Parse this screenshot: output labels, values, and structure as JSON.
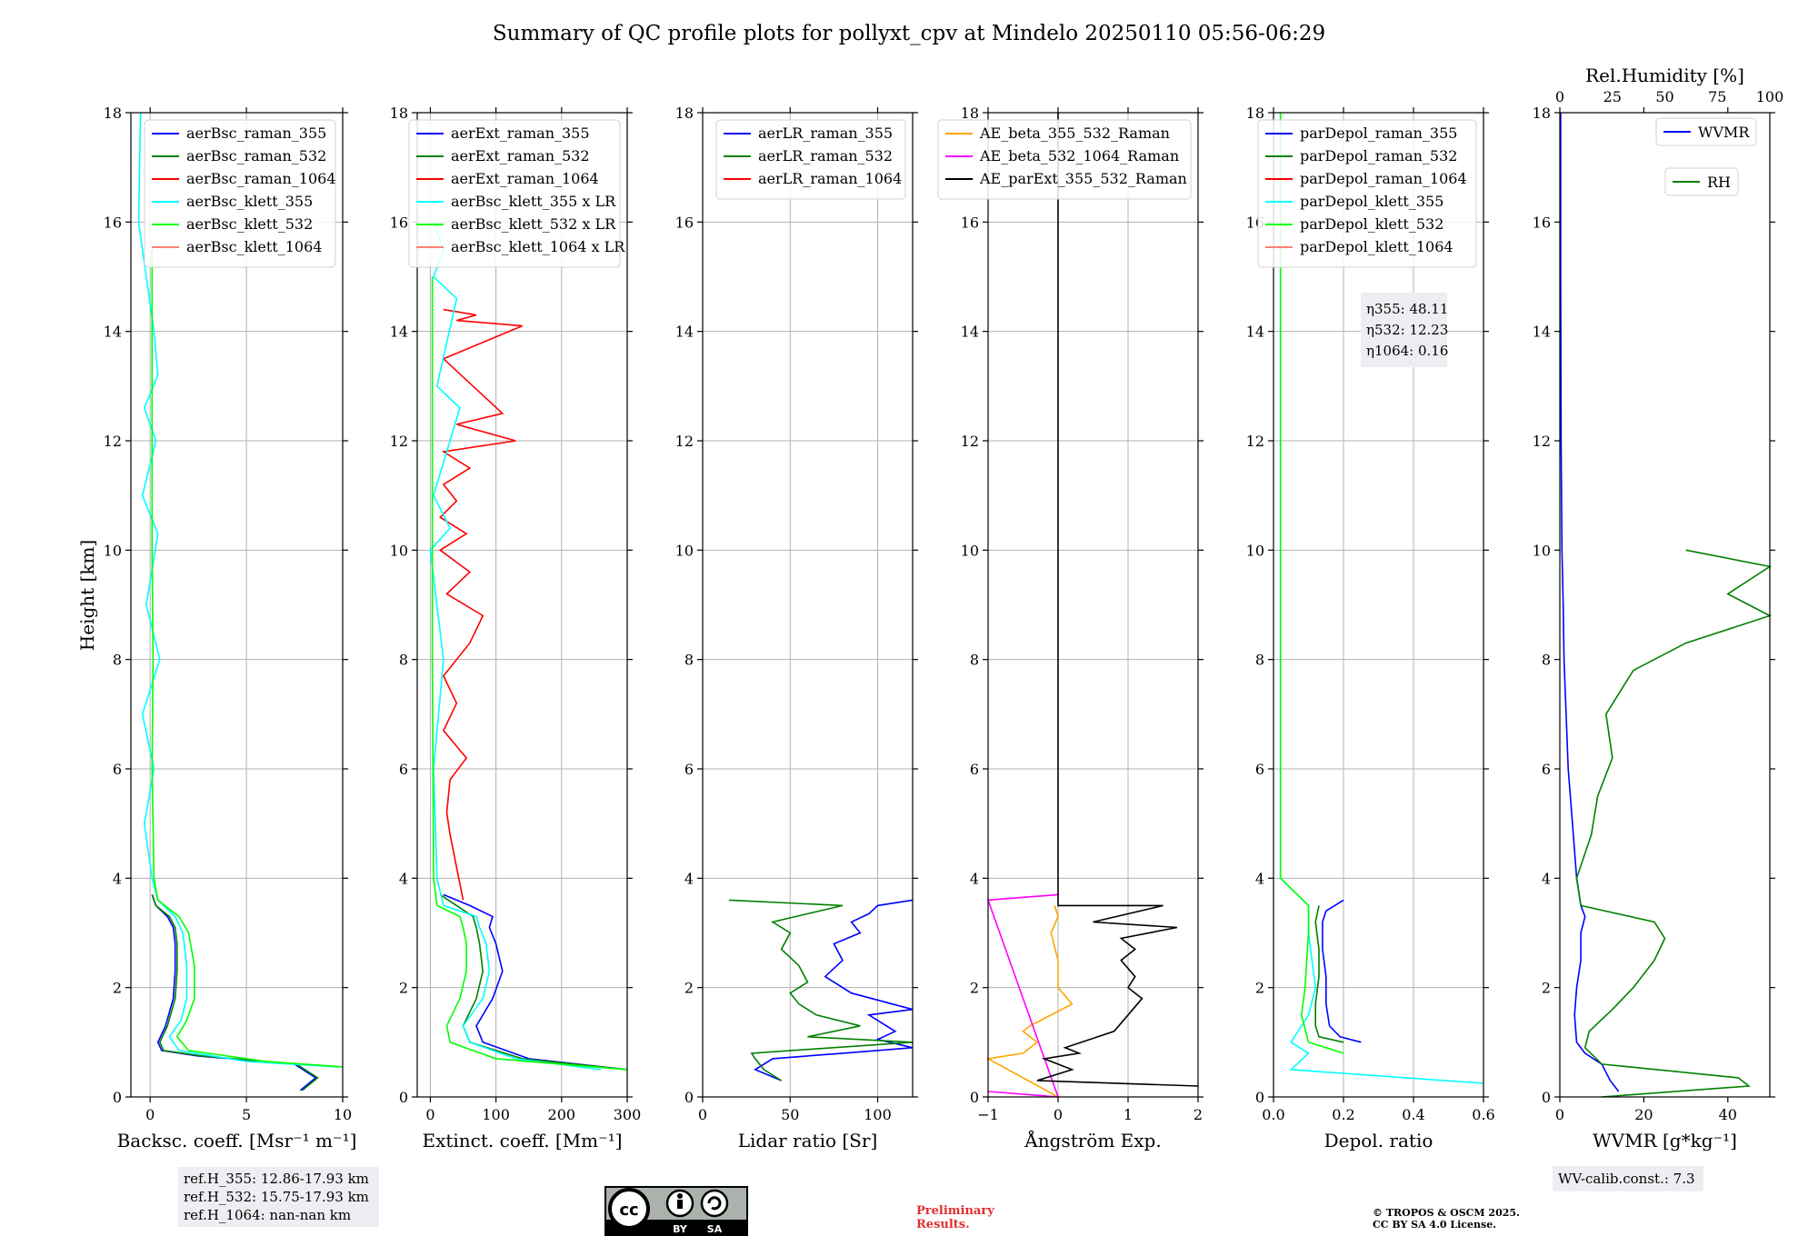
{
  "title": "Summary of QC profile plots for pollyxt_cpv at Mindelo 20250110 05:56-06:29",
  "ylabel": "Height [km]",
  "chart_data": [
    {
      "type": "line",
      "xlabel": "Backsc. coeff. [Msr⁻¹ m⁻¹]",
      "xlim": [
        -1,
        10
      ],
      "ylim": [
        0,
        18
      ],
      "xticks": [
        "0",
        "5",
        "10"
      ],
      "yticks": [
        "0",
        "2",
        "4",
        "6",
        "8",
        "10",
        "12",
        "14",
        "16",
        "18"
      ],
      "grid": true,
      "legend_position": "top-right",
      "series": [
        {
          "name": "aerBsc_raman_355",
          "color": "#0000ff",
          "x": [
            7.8,
            8.6,
            7.5,
            2.5,
            0.6,
            0.4,
            0.8,
            1.2,
            1.3,
            1.3,
            1.2,
            0.9,
            0.3,
            0.1
          ],
          "y": [
            0.12,
            0.35,
            0.6,
            0.75,
            0.85,
            1.0,
            1.3,
            1.8,
            2.3,
            2.8,
            3.1,
            3.3,
            3.5,
            3.7
          ]
        },
        {
          "name": "aerBsc_raman_532",
          "color": "#008000",
          "x": [
            7.9,
            8.7,
            7.6,
            2.7,
            0.7,
            0.5,
            0.9,
            1.3,
            1.4,
            1.4,
            1.3,
            1.0,
            0.3,
            0.1
          ],
          "y": [
            0.12,
            0.35,
            0.6,
            0.75,
            0.85,
            1.0,
            1.3,
            1.8,
            2.3,
            2.8,
            3.1,
            3.3,
            3.5,
            3.7
          ]
        },
        {
          "name": "aerBsc_raman_1064",
          "color": "#ff0000",
          "x": [],
          "y": []
        },
        {
          "name": "aerBsc_klett_355",
          "color": "#00ffff",
          "x": [
            9.8,
            5.0,
            1.5,
            1.0,
            1.6,
            1.9,
            1.9,
            1.7,
            1.3,
            0.4,
            0.1,
            -0.3,
            0.2,
            -0.4,
            0.5,
            -0.2,
            0.4,
            -0.4,
            0.3,
            -0.3,
            0.4,
            0.2,
            -0.2,
            -0.6,
            -0.5
          ],
          "y": [
            0.55,
            0.65,
            0.85,
            1.1,
            1.4,
            1.8,
            2.4,
            3.0,
            3.3,
            3.6,
            4.0,
            5.0,
            6.0,
            7.0,
            8.0,
            9.0,
            10.3,
            11.0,
            12.0,
            12.6,
            13.2,
            14.0,
            15.0,
            16.0,
            18.0
          ]
        },
        {
          "name": "aerBsc_klett_532",
          "color": "#00ff00",
          "x": [
            10.0,
            6.0,
            2.0,
            1.4,
            1.9,
            2.3,
            2.3,
            2.0,
            1.5,
            0.4,
            0.2,
            0.1,
            0.15,
            0.1,
            0.1
          ],
          "y": [
            0.55,
            0.65,
            0.85,
            1.1,
            1.4,
            1.8,
            2.4,
            3.0,
            3.3,
            3.6,
            4.0,
            6.0,
            8.0,
            10.0,
            15.5
          ]
        },
        {
          "name": "aerBsc_klett_1064",
          "color": "#fa8072",
          "x": [],
          "y": []
        }
      ]
    },
    {
      "type": "line",
      "xlabel": "Extinct. coeff. [Mm⁻¹]",
      "xlim": [
        -20,
        300
      ],
      "ylim": [
        0,
        18
      ],
      "xticks": [
        "0",
        "100",
        "200",
        "300"
      ],
      "yticks": [
        "0",
        "2",
        "4",
        "6",
        "8",
        "10",
        "12",
        "14",
        "16",
        "18"
      ],
      "grid": true,
      "legend_position": "top-right",
      "series": [
        {
          "name": "aerExt_raman_355",
          "color": "#0000ff",
          "x": [
            300,
            150,
            80,
            70,
            95,
            110,
            100,
            90,
            95,
            60,
            20
          ],
          "y": [
            0.5,
            0.7,
            1.0,
            1.3,
            1.8,
            2.3,
            2.8,
            3.1,
            3.3,
            3.5,
            3.7
          ]
        },
        {
          "name": "aerExt_raman_532",
          "color": "#008000",
          "x": [
            300,
            140,
            60,
            50,
            70,
            80,
            75,
            70,
            65,
            40,
            15
          ],
          "y": [
            0.5,
            0.7,
            1.0,
            1.3,
            1.8,
            2.3,
            2.8,
            3.1,
            3.3,
            3.5,
            3.7
          ]
        },
        {
          "name": "aerExt_raman_1064",
          "color": "#ff0000",
          "x": [
            50,
            40,
            30,
            25,
            30,
            55,
            20,
            40,
            20,
            60,
            80,
            25,
            60,
            15,
            55,
            15,
            40,
            20,
            60,
            20,
            130,
            40,
            110,
            20,
            140,
            40,
            70,
            20
          ],
          "y": [
            3.6,
            4.2,
            4.8,
            5.2,
            5.8,
            6.2,
            6.7,
            7.2,
            7.7,
            8.3,
            8.8,
            9.2,
            9.6,
            10.0,
            10.3,
            10.6,
            10.9,
            11.2,
            11.5,
            11.8,
            12.0,
            12.3,
            12.5,
            13.5,
            14.1,
            14.2,
            14.3,
            14.4
          ]
        },
        {
          "name": "aerBsc_klett_355 x LR",
          "color": "#00ffff",
          "x": [
            260,
            130,
            60,
            50,
            80,
            90,
            85,
            75,
            70,
            20,
            10,
            5,
            20,
            0,
            30,
            5,
            45,
            10,
            40,
            5,
            20,
            5
          ],
          "y": [
            0.5,
            0.7,
            1.0,
            1.3,
            1.8,
            2.3,
            2.8,
            3.1,
            3.3,
            3.5,
            4.0,
            6.0,
            8.0,
            10.0,
            10.4,
            11.0,
            12.6,
            13.0,
            14.6,
            15.0,
            15.5,
            16.0
          ]
        },
        {
          "name": "aerBsc_klett_532 x LR",
          "color": "#00ff00",
          "x": [
            300,
            100,
            30,
            25,
            45,
            55,
            55,
            50,
            45,
            10,
            5,
            3,
            3
          ],
          "y": [
            0.5,
            0.7,
            1.0,
            1.3,
            1.8,
            2.3,
            2.8,
            3.1,
            3.3,
            3.5,
            4.0,
            8.0,
            15.0
          ]
        },
        {
          "name": "aerBsc_klett_1064 x LR",
          "color": "#fa8072",
          "x": [],
          "y": []
        }
      ]
    },
    {
      "type": "line",
      "xlabel": "Lidar ratio [Sr]",
      "xlim": [
        0,
        120
      ],
      "ylim": [
        0,
        18
      ],
      "xticks": [
        "0",
        "50",
        "100"
      ],
      "yticks": [
        "0",
        "2",
        "4",
        "6",
        "8",
        "10",
        "12",
        "14",
        "16",
        "18"
      ],
      "grid": true,
      "legend_position": "top-right",
      "series": [
        {
          "name": "aerLR_raman_355",
          "color": "#0000ff",
          "x": [
            45,
            30,
            40,
            80,
            120,
            100,
            110,
            95,
            120,
            85,
            70,
            80,
            75,
            90,
            85,
            95,
            100,
            120
          ],
          "y": [
            0.3,
            0.5,
            0.7,
            0.8,
            0.9,
            1.05,
            1.2,
            1.5,
            1.6,
            1.9,
            2.2,
            2.5,
            2.8,
            3.0,
            3.2,
            3.35,
            3.5,
            3.6
          ]
        },
        {
          "name": "aerLR_raman_532",
          "color": "#008000",
          "x": [
            45,
            35,
            30,
            28,
            120,
            60,
            90,
            65,
            55,
            50,
            60,
            55,
            45,
            50,
            40,
            60,
            80,
            15
          ],
          "y": [
            0.3,
            0.5,
            0.7,
            0.8,
            1.0,
            1.1,
            1.3,
            1.5,
            1.7,
            1.9,
            2.1,
            2.4,
            2.7,
            3.0,
            3.2,
            3.35,
            3.5,
            3.6
          ]
        },
        {
          "name": "aerLR_raman_1064",
          "color": "#ff0000",
          "x": [],
          "y": []
        }
      ]
    },
    {
      "type": "line",
      "xlabel": "Ångström Exp.",
      "xlim": [
        -1,
        2
      ],
      "ylim": [
        0,
        18
      ],
      "xticks": [
        "−1",
        "0",
        "1",
        "2"
      ],
      "yticks": [
        "0",
        "2",
        "4",
        "6",
        "8",
        "10",
        "12",
        "14",
        "16",
        "18"
      ],
      "grid": true,
      "legend_position": "top-right",
      "series": [
        {
          "name": "AE_beta_355_532_Raman",
          "color": "#ffa500",
          "x": [
            0,
            -1,
            -0.5,
            -0.3,
            -0.5,
            -0.4,
            0.2,
            0,
            0,
            -0.1,
            0,
            -0.05
          ],
          "y": [
            0,
            0.7,
            0.8,
            1.0,
            1.2,
            1.3,
            1.7,
            2.0,
            2.5,
            3.0,
            3.3,
            3.5
          ]
        },
        {
          "name": "AE_beta_532_1064_Raman",
          "color": "#ff00ff",
          "x": [
            -1,
            0,
            -1,
            0
          ],
          "y": [
            0.1,
            0.0,
            3.6,
            3.7
          ]
        },
        {
          "name": "AE_parExt_355_532_Raman",
          "color": "#000000",
          "x": [
            2,
            -0.3,
            0.2,
            -0.2,
            0.3,
            0.1,
            0.8,
            1.0,
            1.2,
            1.0,
            1.1,
            0.9,
            1.1,
            0.9,
            1.7,
            0.5,
            1.5,
            0,
            0,
            0
          ],
          "y": [
            0.2,
            0.3,
            0.5,
            0.7,
            0.8,
            0.9,
            1.2,
            1.5,
            1.8,
            2.0,
            2.2,
            2.5,
            2.7,
            2.9,
            3.1,
            3.2,
            3.5,
            3.5,
            10.0,
            18.0
          ]
        }
      ]
    },
    {
      "type": "line",
      "xlabel": "Depol. ratio",
      "xlim": [
        0,
        0.6
      ],
      "ylim": [
        0,
        18
      ],
      "xticks": [
        "0.0",
        "0.2",
        "0.4",
        "0.6"
      ],
      "yticks": [
        "0",
        "2",
        "4",
        "6",
        "8",
        "10",
        "12",
        "14",
        "16",
        "18"
      ],
      "grid": true,
      "legend_position": "top-right",
      "series": [
        {
          "name": "parDepol_raman_355",
          "color": "#0000ff",
          "x": [
            0.25,
            0.19,
            0.16,
            0.15,
            0.15,
            0.14,
            0.14,
            0.15,
            0.2
          ],
          "y": [
            1.0,
            1.1,
            1.3,
            1.7,
            2.2,
            2.7,
            3.2,
            3.4,
            3.6
          ]
        },
        {
          "name": "parDepol_raman_532",
          "color": "#008000",
          "x": [
            0.2,
            0.13,
            0.12,
            0.12,
            0.13,
            0.13,
            0.12,
            0.13
          ],
          "y": [
            1.0,
            1.1,
            1.3,
            1.7,
            2.2,
            2.7,
            3.2,
            3.5
          ]
        },
        {
          "name": "parDepol_raman_1064",
          "color": "#ff0000",
          "x": [],
          "y": []
        },
        {
          "name": "parDepol_klett_355",
          "color": "#00ffff",
          "x": [
            0.6,
            0.05,
            0.1,
            0.05,
            0.1,
            0.12,
            0.1,
            0.1,
            0.02,
            0.02
          ],
          "y": [
            0.25,
            0.5,
            0.8,
            1.0,
            1.5,
            2.0,
            3.0,
            3.5,
            4.0,
            18.0
          ]
        },
        {
          "name": "parDepol_klett_532",
          "color": "#00ff00",
          "x": [
            0.2,
            0.1,
            0.08,
            0.09,
            0.1,
            0.1,
            0.02,
            0.02
          ],
          "y": [
            0.8,
            1.0,
            1.5,
            2.0,
            3.0,
            3.5,
            4.0,
            18.0
          ]
        },
        {
          "name": "parDepol_klett_1064",
          "color": "#fa8072",
          "x": [],
          "y": []
        }
      ]
    },
    {
      "type": "line",
      "xlabel": "WVMR [g*kg⁻¹]",
      "xlim": [
        0,
        50
      ],
      "ylim": [
        0,
        18
      ],
      "xticks": [
        "0",
        "20",
        "40"
      ],
      "yticks": [
        "0",
        "2",
        "4",
        "6",
        "8",
        "10",
        "12",
        "14",
        "16",
        "18"
      ],
      "x2label": "Rel.Humidity [%]",
      "x2lim": [
        0,
        100
      ],
      "x2ticks": [
        "0",
        "25",
        "50",
        "75",
        "100"
      ],
      "grid": false,
      "legend_position": "top-right",
      "series": [
        {
          "name": "WVMR",
          "color": "#0000ff",
          "x": [
            14,
            12,
            10,
            6,
            4,
            3.5,
            4,
            5,
            5,
            6,
            5,
            4,
            3,
            2,
            1.5,
            1.0,
            0.8,
            0.5,
            0.3,
            0.2,
            0.2
          ],
          "y": [
            0.1,
            0.3,
            0.6,
            0.8,
            1.0,
            1.5,
            2.0,
            2.5,
            3.0,
            3.3,
            3.5,
            4.0,
            5.0,
            6.0,
            7.0,
            8.0,
            9.0,
            10.0,
            12.0,
            15.0,
            18.0
          ]
        },
        {
          "name": "RH",
          "color": "#008000",
          "x": [
            20,
            90,
            85,
            20,
            12,
            14,
            25,
            35,
            45,
            50,
            45,
            10,
            8,
            15,
            18,
            25,
            22,
            35,
            60,
            100,
            80,
            100,
            60
          ],
          "y": [
            0.0,
            0.2,
            0.35,
            0.6,
            0.9,
            1.2,
            1.6,
            2.0,
            2.5,
            2.9,
            3.2,
            3.5,
            4.0,
            4.8,
            5.5,
            6.2,
            7.0,
            7.8,
            8.3,
            8.8,
            9.2,
            9.7,
            10.0
          ]
        }
      ]
    }
  ],
  "eta_labels": [
    "η355: 48.11",
    "η532: 12.23",
    "η1064: 0.16"
  ],
  "ref_labels": [
    "ref.H_355: 12.86-17.93 km",
    "ref.H_532: 15.75-17.93 km",
    "ref.H_1064: nan-nan km"
  ],
  "wv_calib": "WV-calib.const.: 7.3",
  "license_badge": {
    "cc": "cc",
    "by": "BY",
    "sa": "SA"
  },
  "preliminary": [
    "Preliminary",
    "Results."
  ],
  "copyright": [
    "© TROPOS & OSCM 2025.",
    "CC BY SA 4.0 License."
  ]
}
